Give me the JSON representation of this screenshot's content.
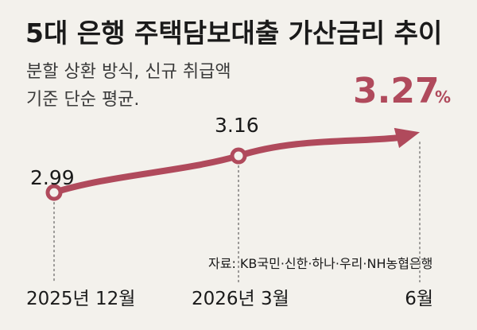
{
  "chart_data": {
    "type": "line",
    "title": "5대 은행 주택담보대출 가산금리 추이",
    "subtitle_lines": [
      "분할 상환 방식, 신규 취급액",
      "기준 단순 평균."
    ],
    "x": [
      "2025년 12월",
      "2026년 3월",
      "6월"
    ],
    "series": [
      {
        "values": [
          2.99,
          3.16,
          3.27
        ]
      }
    ],
    "data_labels": [
      "2.99",
      "3.16",
      "3.27"
    ],
    "last_label_unit": "%",
    "source": "자료: KB국민·신한·하나·우리·NH농협은행",
    "ylim": [
      2.85,
      3.33
    ],
    "grid": false,
    "line_color": "#b04a5c"
  }
}
